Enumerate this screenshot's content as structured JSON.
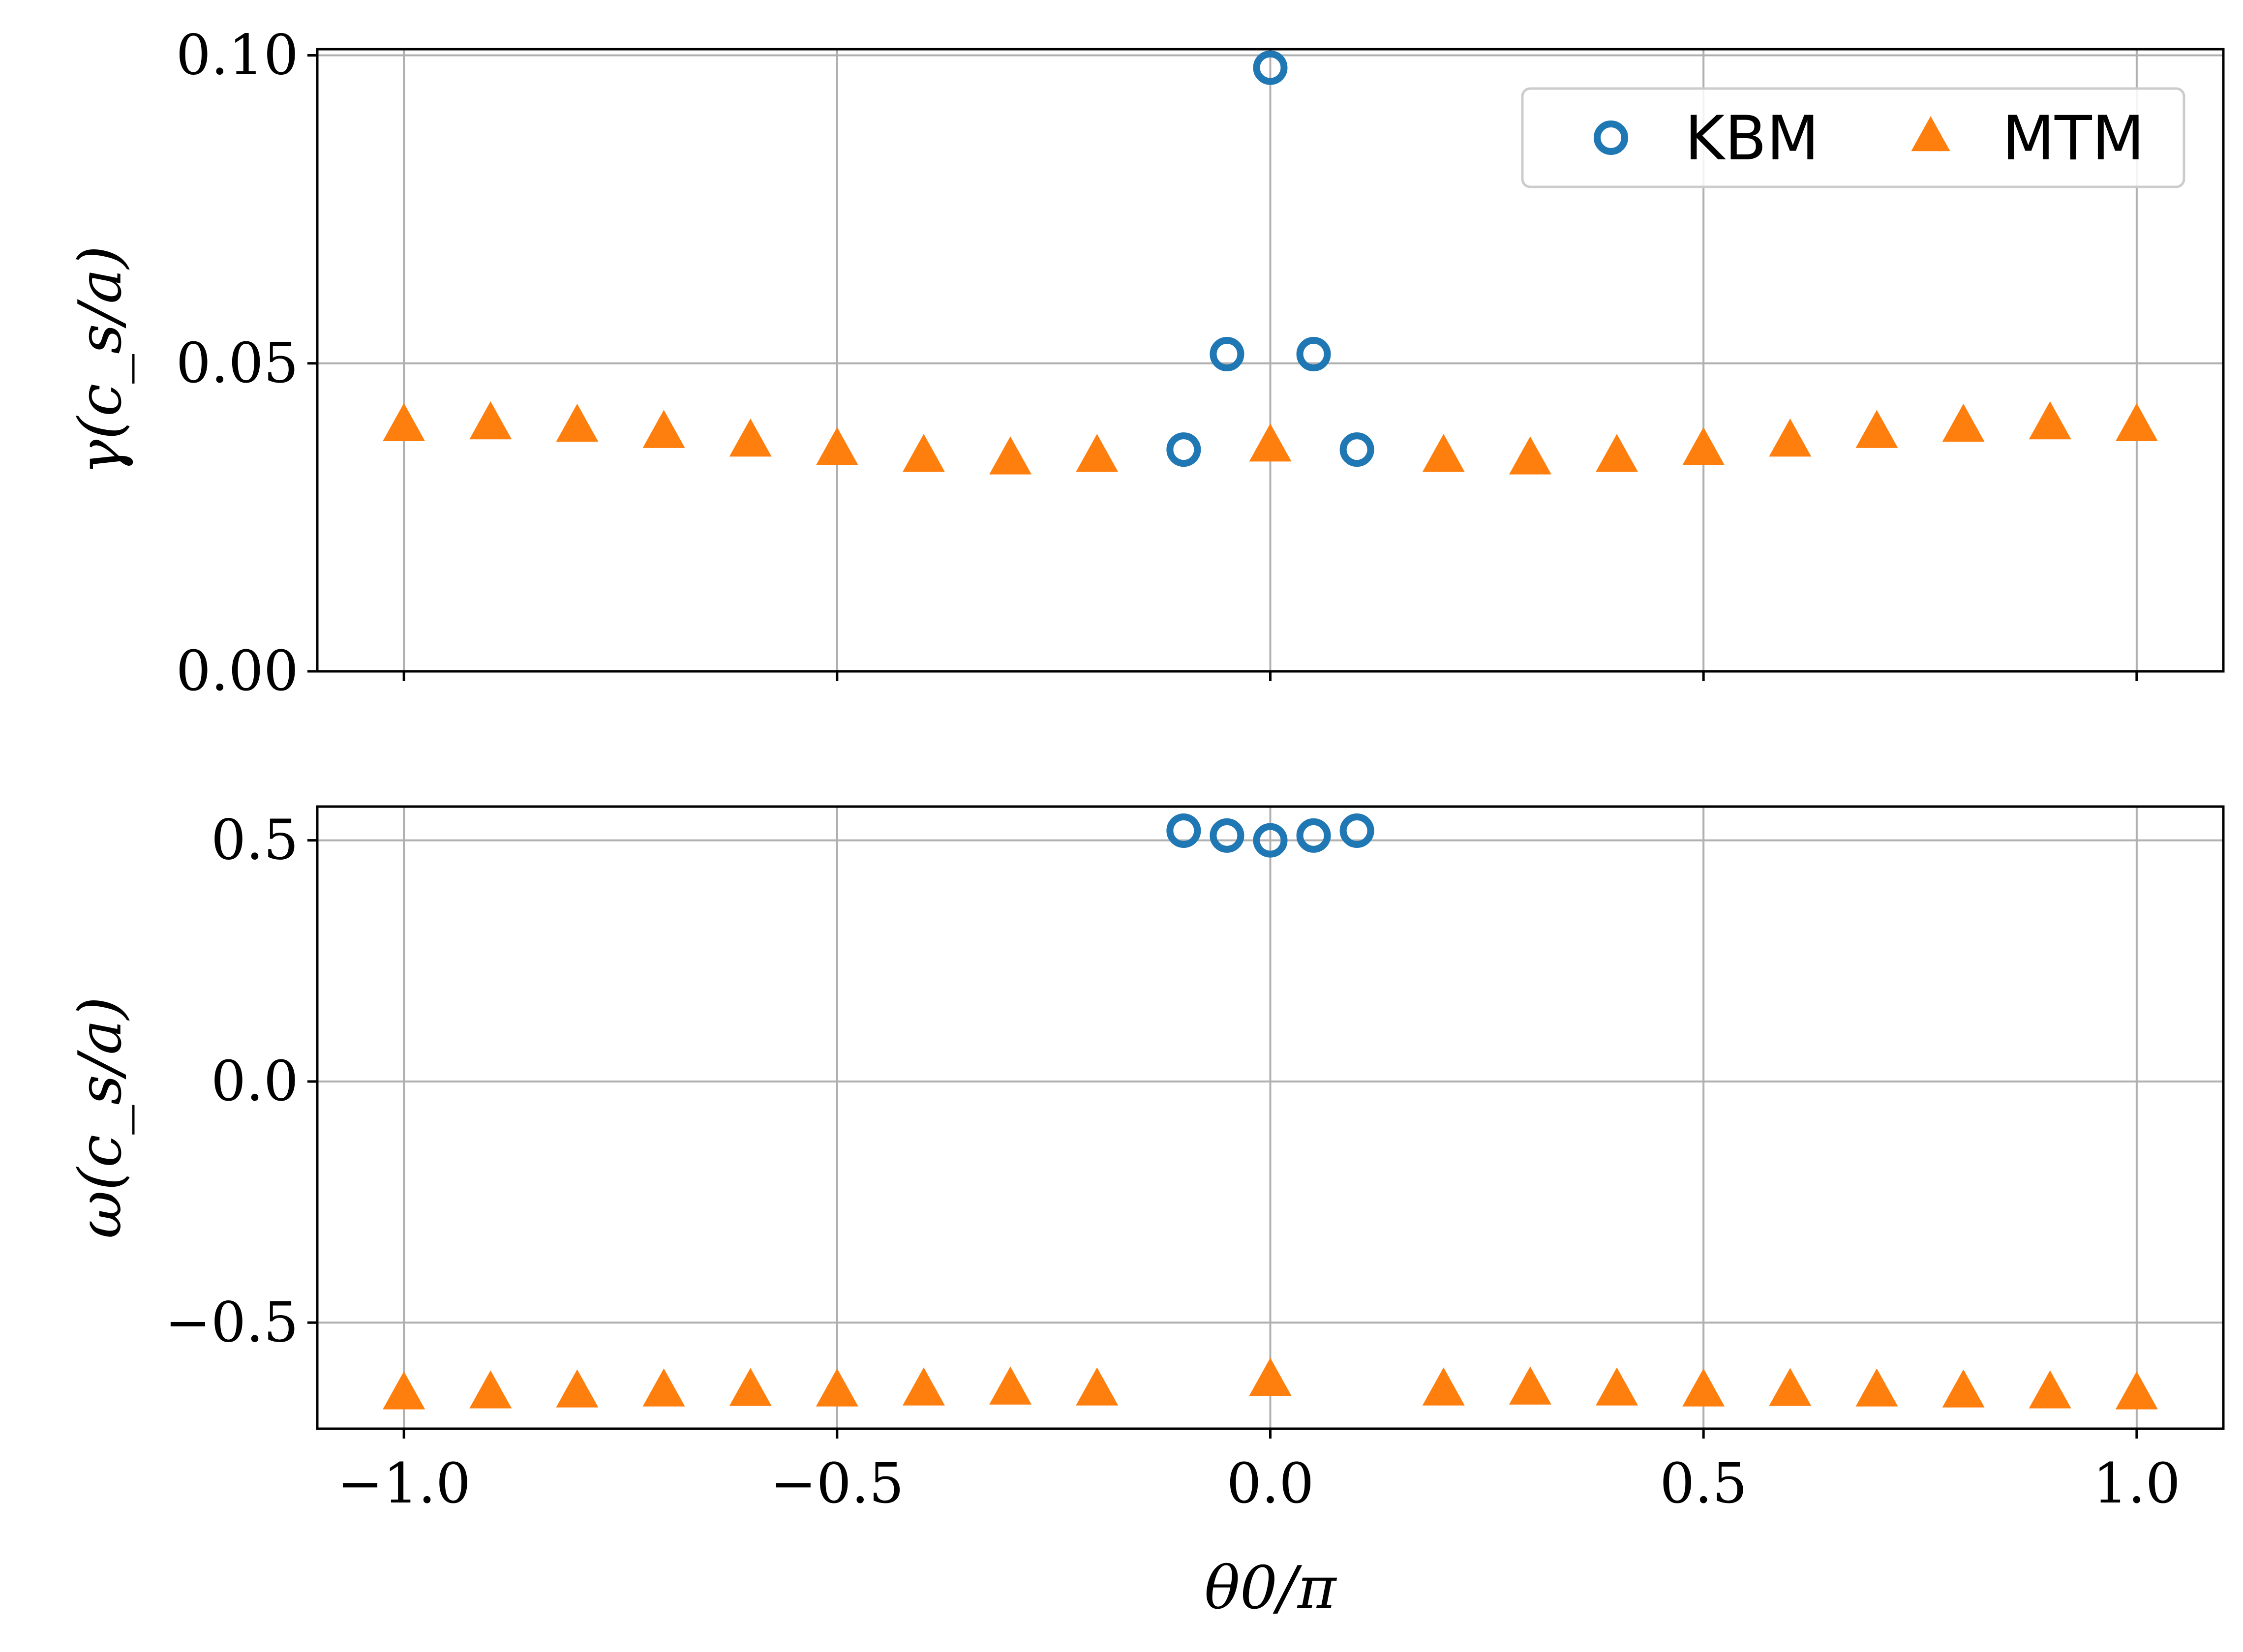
{
  "chart_data": [
    {
      "type": "scatter",
      "panel": "top",
      "ylabel": "γ(c_s/a)",
      "xlim": [
        -1.1,
        1.1
      ],
      "ylim": [
        0.0,
        0.101
      ],
      "yticks": [
        0.0,
        0.05,
        0.1
      ],
      "ytick_labels": [
        "0.00",
        "0.05",
        "0.10"
      ],
      "xticks": [
        -1.0,
        -0.5,
        0.0,
        0.5,
        1.0
      ],
      "grid": true,
      "legend": "top-right",
      "series": [
        {
          "name": "KBM",
          "marker": "circle-open",
          "color": "#1f77b4",
          "x": [
            -0.1,
            -0.05,
            0.0,
            0.05,
            0.1
          ],
          "y": [
            0.036,
            0.0515,
            0.098,
            0.0515,
            0.036
          ]
        },
        {
          "name": "MTM",
          "marker": "triangle",
          "color": "#ff7f0e",
          "x": [
            -1.0,
            -0.9,
            -0.8,
            -0.7,
            -0.6,
            -0.5,
            -0.4,
            -0.3,
            -0.2,
            0.0,
            0.2,
            0.3,
            0.4,
            0.5,
            0.6,
            0.7,
            0.8,
            0.9,
            1.0
          ],
          "y": [
            0.0397,
            0.04,
            0.0396,
            0.0386,
            0.0372,
            0.0358,
            0.0347,
            0.0343,
            0.0347,
            0.0364,
            0.0347,
            0.0343,
            0.0347,
            0.0358,
            0.0372,
            0.0386,
            0.0396,
            0.04,
            0.0397
          ]
        }
      ]
    },
    {
      "type": "scatter",
      "panel": "bottom",
      "ylabel": "ω(c_s/a)",
      "xlabel": "θ0/π",
      "xlim": [
        -1.1,
        1.1
      ],
      "ylim": [
        -0.72,
        0.57
      ],
      "yticks": [
        -0.5,
        0.0,
        0.5
      ],
      "ytick_labels": [
        "−0.5",
        "0.0",
        "0.5"
      ],
      "xticks": [
        -1.0,
        -0.5,
        0.0,
        0.5,
        1.0
      ],
      "xtick_labels": [
        "−1.0",
        "−0.5",
        "0.0",
        "0.5",
        "1.0"
      ],
      "grid": true,
      "series": [
        {
          "name": "KBM",
          "marker": "circle-open",
          "color": "#1f77b4",
          "x": [
            -0.1,
            -0.05,
            0.0,
            0.05,
            0.1
          ],
          "y": [
            0.52,
            0.51,
            0.5,
            0.51,
            0.52
          ]
        },
        {
          "name": "MTM",
          "marker": "triangle",
          "color": "#ff7f0e",
          "x": [
            -1.0,
            -0.9,
            -0.8,
            -0.7,
            -0.6,
            -0.5,
            -0.4,
            -0.3,
            -0.2,
            0.0,
            0.2,
            0.3,
            0.4,
            0.5,
            0.6,
            0.7,
            0.8,
            0.9,
            1.0
          ],
          "y": [
            -0.65,
            -0.648,
            -0.646,
            -0.644,
            -0.643,
            -0.644,
            -0.642,
            -0.64,
            -0.642,
            -0.622,
            -0.642,
            -0.64,
            -0.642,
            -0.644,
            -0.643,
            -0.644,
            -0.646,
            -0.648,
            -0.65
          ]
        }
      ]
    }
  ]
}
